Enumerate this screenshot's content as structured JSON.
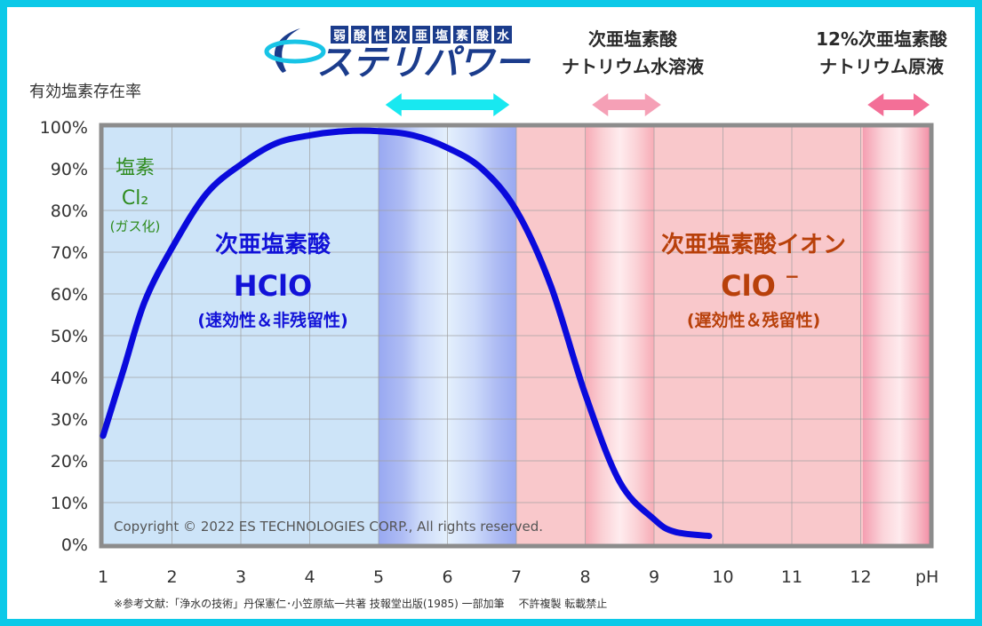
{
  "brand": {
    "tagline_chars": [
      "弱",
      "酸",
      "性",
      "次",
      "亜",
      "塩",
      "素",
      "酸",
      "水"
    ],
    "name": "ステリパワー",
    "colors": {
      "navy": "#1b3c8c",
      "cyan": "#18c4e6"
    }
  },
  "headers": {
    "sodium_solution": [
      "次亜塩素酸",
      "ナトリウム水溶液"
    ],
    "sodium_raw": [
      "12%次亜塩素酸",
      "ナトリウム原液"
    ]
  },
  "region_labels": {
    "chlorine": {
      "name": "塩素",
      "formula": "Cl₂",
      "note": "(ガス化)",
      "color": "#2e8b1e"
    },
    "hclo": {
      "name": "次亜塩素酸",
      "formula": "HClO",
      "note": "(速効性＆非残留性)",
      "color": "#1212d8"
    },
    "clo": {
      "name": "次亜塩素酸イオン",
      "formula": "ClO",
      "superscript": "−",
      "note": "(遅効性＆残留性)",
      "color": "#b8400a"
    }
  },
  "copyright": "Copyright © 2022 ES TECHNOLOGIES CORP., All rights reserved.",
  "footnote": "※参考文献:「浄水の技術」丹保憲仁･小笠原紘一共著 技報堂出版(1985) 一部加筆　 不許複製 転載禁止",
  "chart_data": {
    "type": "line",
    "title": "",
    "ylabel": "有効塩素存在率",
    "xlabel": "pH",
    "xlim": [
      1,
      13
    ],
    "ylim": [
      0,
      100
    ],
    "x_ticks": [
      1,
      2,
      3,
      4,
      5,
      6,
      7,
      8,
      9,
      10,
      11,
      12
    ],
    "y_ticks": [
      0,
      10,
      20,
      30,
      40,
      50,
      60,
      70,
      80,
      90,
      100
    ],
    "y_tick_labels": [
      "0%",
      "10%",
      "20%",
      "30%",
      "40%",
      "50%",
      "60%",
      "70%",
      "80%",
      "90%",
      "100%"
    ],
    "grid": true,
    "series": [
      {
        "name": "HClO",
        "color": "#0a0adc",
        "x": [
          1,
          1.3,
          1.6,
          2,
          2.5,
          3,
          3.5,
          4,
          4.5,
          5,
          5.5,
          6,
          6.5,
          7,
          7.5,
          8,
          8.5,
          9,
          9.3,
          9.8
        ],
        "y": [
          26,
          42,
          58,
          71,
          84,
          91,
          96,
          98,
          99,
          99,
          98,
          95,
          90,
          80,
          62,
          36,
          15,
          6,
          3,
          2
        ]
      }
    ],
    "regions": [
      {
        "name": "塩素",
        "x": [
          1,
          4.2
        ],
        "color": "#fbf5c0"
      },
      {
        "name": "次亜塩素酸",
        "x": [
          1,
          7
        ],
        "color": "#cde4f8"
      },
      {
        "name": "次亜塩素酸イオン",
        "x": [
          7,
          13
        ],
        "color": "#f9c8cb"
      }
    ],
    "ranges": [
      {
        "label": "ステリパワー",
        "x": [
          5.1,
          6.9
        ],
        "color": "#18e8f0"
      },
      {
        "label": "次亜塩素酸ナトリウム水溶液",
        "x": [
          8.1,
          9.1
        ],
        "color": "#f5a0b6"
      },
      {
        "label": "12%次亜塩素酸ナトリウム原液",
        "x": [
          12.1,
          13
        ],
        "color": "#f36f97"
      }
    ]
  }
}
